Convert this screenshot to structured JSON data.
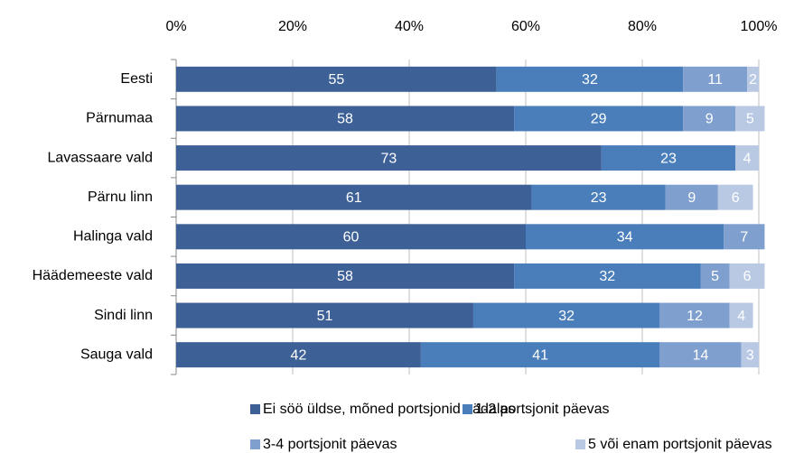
{
  "chart_data": {
    "type": "bar",
    "orientation": "horizontal",
    "stacked": true,
    "categories": [
      "Eesti",
      "Pärnumaa",
      "Lavassaare vald",
      "Pärnu linn",
      "Halinga vald",
      "Häädemeeste vald",
      "Sindi linn",
      "Sauga vald"
    ],
    "series": [
      {
        "name": "Ei söö üldse, mõned portsjonid nädalas",
        "color": "#3d6097",
        "values": [
          55,
          58,
          73,
          61,
          60,
          58,
          51,
          42
        ]
      },
      {
        "name": "1-2 portsjonit päevas",
        "color": "#4a7ebb",
        "values": [
          32,
          29,
          23,
          23,
          34,
          32,
          32,
          41
        ]
      },
      {
        "name": "3-4 portsjonit päevas",
        "color": "#7f9fcf",
        "values": [
          11,
          9,
          null,
          9,
          7,
          5,
          12,
          14
        ]
      },
      {
        "name": "5 või enam portsjonit päevas",
        "color": "#b9c9e4",
        "values": [
          2,
          5,
          4,
          6,
          null,
          6,
          4,
          3
        ]
      }
    ],
    "xlim": [
      0,
      100
    ],
    "xticks": [
      {
        "value": 0,
        "label": "0%"
      },
      {
        "value": 20,
        "label": "20%"
      },
      {
        "value": 40,
        "label": "40%"
      },
      {
        "value": 60,
        "label": "60%"
      },
      {
        "value": 80,
        "label": "80%"
      },
      {
        "value": 100,
        "label": "100%"
      }
    ],
    "grid": true,
    "legend": "bottom"
  }
}
